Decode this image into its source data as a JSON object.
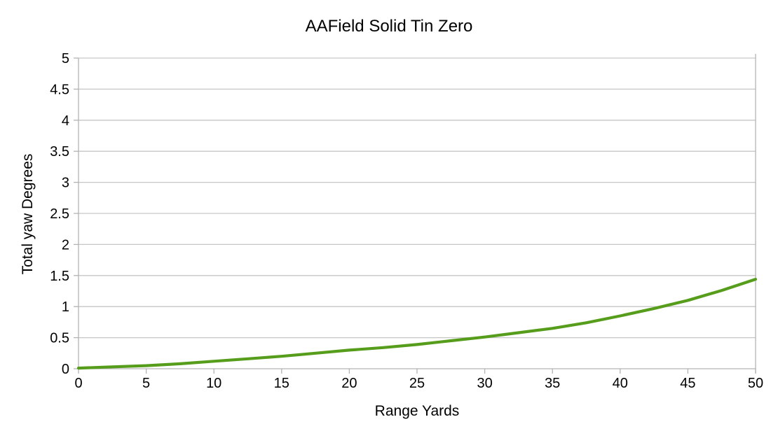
{
  "chart_data": {
    "type": "line",
    "title": "AAField Solid Tin Zero",
    "xlabel": "Range Yards",
    "ylabel": "Total yaw Degrees",
    "xlim": [
      0,
      50
    ],
    "ylim": [
      0,
      5
    ],
    "x_ticks": [
      0,
      5,
      10,
      15,
      20,
      25,
      30,
      35,
      40,
      45,
      50
    ],
    "y_ticks": [
      0,
      0.5,
      1,
      1.5,
      2,
      2.5,
      3,
      3.5,
      4,
      4.5,
      5
    ],
    "grid": "horizontal-only",
    "legend_position": "none",
    "colors": {
      "series": "#579d1c",
      "axis": "#b3b3b3",
      "gridline": "#c6c6c6",
      "text": "#000000",
      "background": "#ffffff"
    },
    "series": [
      {
        "name": "Total yaw",
        "color": "#579d1c",
        "points": [
          {
            "x": 0,
            "y": 0.01
          },
          {
            "x": 2.5,
            "y": 0.03
          },
          {
            "x": 5,
            "y": 0.05
          },
          {
            "x": 7.5,
            "y": 0.08
          },
          {
            "x": 10,
            "y": 0.12
          },
          {
            "x": 12.5,
            "y": 0.16
          },
          {
            "x": 15,
            "y": 0.2
          },
          {
            "x": 17.5,
            "y": 0.25
          },
          {
            "x": 20,
            "y": 0.3
          },
          {
            "x": 22.5,
            "y": 0.34
          },
          {
            "x": 25,
            "y": 0.39
          },
          {
            "x": 27.5,
            "y": 0.45
          },
          {
            "x": 30,
            "y": 0.51
          },
          {
            "x": 32.5,
            "y": 0.58
          },
          {
            "x": 35,
            "y": 0.65
          },
          {
            "x": 37.5,
            "y": 0.74
          },
          {
            "x": 40,
            "y": 0.85
          },
          {
            "x": 42.5,
            "y": 0.97
          },
          {
            "x": 45,
            "y": 1.1
          },
          {
            "x": 47.5,
            "y": 1.26
          },
          {
            "x": 50,
            "y": 1.44
          }
        ]
      }
    ]
  }
}
